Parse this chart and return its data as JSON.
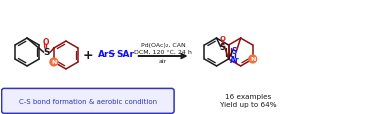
{
  "bg_color": "#ffffff",
  "arrow_label_top": "Pd(OAc)₂, CAN",
  "arrow_label_mid": "DCM, 120 °C, 24 h",
  "arrow_label_bot": "air",
  "product_label1": "16 examples",
  "product_label2": "Yield up to 64%",
  "box_label": "C-S bond formation & aerobic condition",
  "color_dark": "#1a1a1a",
  "color_blue": "#1010ee",
  "color_darkred": "#8b1010",
  "color_N_fill": "#f07040",
  "color_box_border": "#3333bb",
  "color_box_fill": "#eeeeff",
  "color_S_oxide": "#cc2222",
  "color_arrow": "#333333"
}
